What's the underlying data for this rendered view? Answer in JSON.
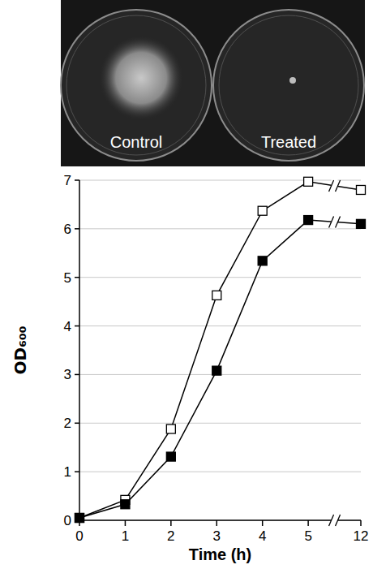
{
  "photo": {
    "labels": [
      "Control",
      "Treated"
    ]
  },
  "chart_data": {
    "type": "line",
    "x_label": "Time (h)",
    "y_label": "OD₆₀₀",
    "x": [
      0,
      1,
      2,
      3,
      4,
      5,
      12
    ],
    "series": [
      {
        "color": "#000000",
        "marker": "open-square",
        "line_style": "solid",
        "values": [
          0.05,
          0.42,
          1.88,
          4.63,
          6.37,
          6.97,
          6.8
        ]
      },
      {
        "color": "#000000",
        "marker": "filled-square",
        "line_style": "solid",
        "values": [
          0.05,
          0.33,
          1.31,
          3.08,
          5.34,
          6.18,
          6.1
        ]
      }
    ],
    "xlim": [
      0,
      12
    ],
    "xticks": [
      0,
      1,
      2,
      3,
      4,
      5,
      12
    ],
    "ylim": [
      0,
      7
    ],
    "yticks": [
      0,
      1,
      2,
      3,
      4,
      5,
      6,
      7
    ],
    "grid": true
  }
}
